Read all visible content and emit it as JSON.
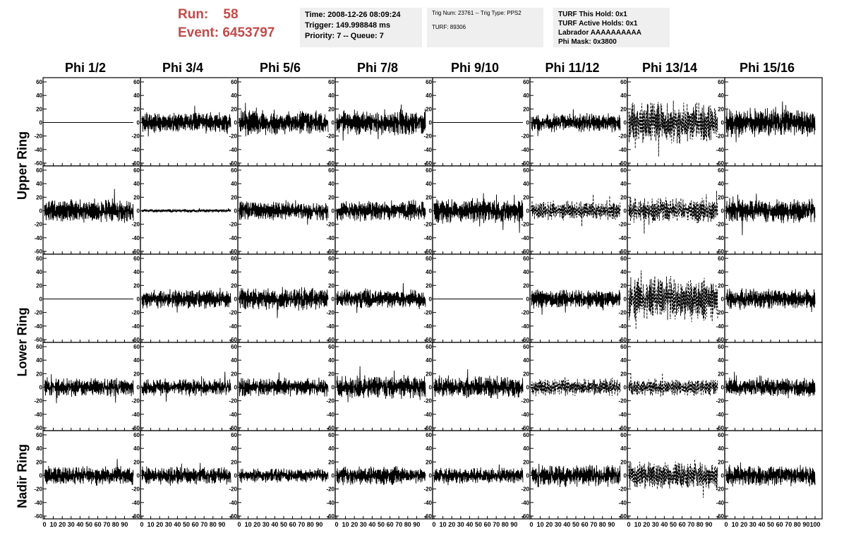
{
  "header": {
    "run_label": "Run:",
    "run_value": "58",
    "event_label": "Event:",
    "event_value": "6453797"
  },
  "info_boxes": {
    "time": "Time: 2008-12-26 08:09:24",
    "trigger": "Trigger: 149.998848 ms",
    "priority": "Priority: 7 -- Queue: 7",
    "trig_num": "Trig Num: 23761 -- Trig Type: PPS2",
    "turf": "TURF: 89306",
    "turf_hold": "TURF This Hold: 0x1",
    "turf_active": "TURF Active Holds: 0x1",
    "labrador": "Labrador AAAAAAAAAA",
    "phi_mask": "Phi Mask: 0x3800"
  },
  "columns": [
    "Phi 1/2",
    "Phi 3/4",
    "Phi 5/6",
    "Phi 7/8",
    "Phi 9/10",
    "Phi 11/12",
    "Phi 13/14",
    "Phi 15/16"
  ],
  "ring_labels": [
    "Upper Ring",
    "Lower Ring",
    "Nadir Ring"
  ],
  "chart_data": {
    "type": "line",
    "title": "",
    "rows": 5,
    "cols": 8,
    "xlim": [
      0,
      100
    ],
    "ylim": [
      -60,
      60
    ],
    "x_ticks": [
      0,
      10,
      20,
      30,
      40,
      50,
      60,
      70,
      80,
      90,
      100
    ],
    "y_ticks": [
      -60,
      -40,
      -20,
      0,
      20,
      40,
      60
    ],
    "line_color": "#000000",
    "flat_panels": [
      [
        0,
        0
      ],
      [
        0,
        4
      ],
      [
        2,
        0
      ],
      [
        2,
        4
      ]
    ],
    "quiet_panels": [
      [
        1,
        1
      ]
    ],
    "dashed_panels": [
      [
        0,
        6
      ],
      [
        1,
        5
      ],
      [
        1,
        6
      ],
      [
        2,
        6
      ],
      [
        3,
        5
      ],
      [
        3,
        6
      ],
      [
        4,
        6
      ]
    ],
    "panel_amplitude": [
      [
        0,
        12,
        14,
        15,
        0,
        11,
        24,
        16
      ],
      [
        14,
        2,
        11,
        12,
        14,
        11,
        15,
        15
      ],
      [
        0,
        11,
        13,
        11,
        0,
        11,
        26,
        12
      ],
      [
        11,
        10,
        11,
        14,
        13,
        10,
        10,
        11
      ],
      [
        11,
        10,
        8,
        11,
        9,
        13,
        16,
        12
      ]
    ]
  }
}
